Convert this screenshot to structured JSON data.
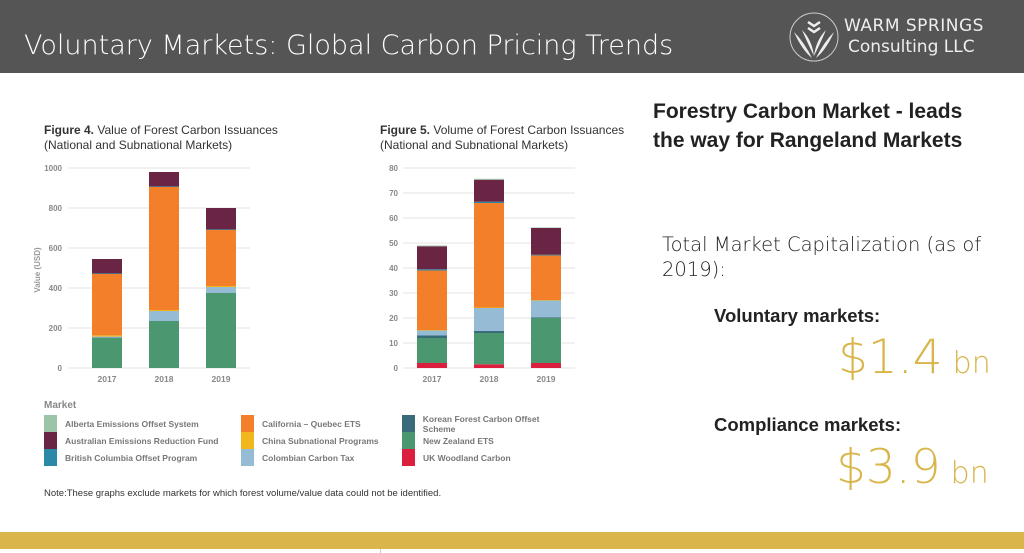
{
  "header": {
    "title": "Voluntary Markets: Global Carbon Pricing Trends",
    "logo_line1": "WARM SPRINGS",
    "logo_line2": "Consulting LLC"
  },
  "right": {
    "heading": "Forestry Carbon Market - leads the way for Rangeland Markets",
    "capitalization": "Total Market Capitalization (as of 2019):",
    "voluntary_label": "Voluntary markets:",
    "voluntary_value": "$1.4",
    "voluntary_unit": "bn",
    "compliance_label": "Compliance markets:",
    "compliance_value": "$3.9",
    "compliance_unit": "bn",
    "accent": "#d9b54a"
  },
  "legend": {
    "title": "Market",
    "items": [
      {
        "name": "Alberta Emissions Offset System",
        "color": "#9cc4a8"
      },
      {
        "name": "Australian Emissions Reduction Fund",
        "color": "#6b2544"
      },
      {
        "name": "British Columbia Offset Program",
        "color": "#2a89a8"
      },
      {
        "name": "California – Quebec ETS",
        "color": "#f47f2a"
      },
      {
        "name": "China Subnational Programs",
        "color": "#f2b71c"
      },
      {
        "name": "Colombian Carbon Tax",
        "color": "#95bcd4"
      },
      {
        "name": "Korean Forest Carbon Offset Scheme",
        "color": "#3a6b7a"
      },
      {
        "name": "New Zealand ETS",
        "color": "#4a9770"
      },
      {
        "name": "UK Woodland Carbon",
        "color": "#dc1f3f"
      }
    ]
  },
  "note": "Note:These graphs exclude markets for which forest volume/value data could not be identified.",
  "chart_data": [
    {
      "type": "bar",
      "stacked": true,
      "title_bold": "Figure 4.",
      "title": "Value of Forest Carbon Issuances",
      "subtitle": "(National and Subnational Markets)",
      "ylabel": "Value (USD)",
      "xlabel": "",
      "ylim": [
        0,
        1000
      ],
      "yticks": [
        0,
        200,
        400,
        600,
        800,
        1000
      ],
      "grid": true,
      "categories": [
        "2017",
        "2018",
        "2019"
      ],
      "series": [
        {
          "name": "UK Woodland Carbon",
          "values": [
            0,
            0,
            0
          ]
        },
        {
          "name": "New Zealand ETS",
          "values": [
            150,
            235,
            375
          ]
        },
        {
          "name": "Korean Forest Carbon Offset Scheme",
          "values": [
            2,
            0,
            0
          ]
        },
        {
          "name": "Colombian Carbon Tax",
          "values": [
            5,
            50,
            30
          ]
        },
        {
          "name": "China Subnational Programs",
          "values": [
            6,
            5,
            5
          ]
        },
        {
          "name": "California – Quebec ETS",
          "values": [
            307,
            615,
            280
          ]
        },
        {
          "name": "British Columbia Offset Program",
          "values": [
            3,
            3,
            3
          ]
        },
        {
          "name": "Australian Emissions Reduction Fund",
          "values": [
            72,
            72,
            107
          ]
        },
        {
          "name": "Alberta Emissions Offset System",
          "values": [
            0,
            0,
            0
          ]
        }
      ]
    },
    {
      "type": "bar",
      "stacked": true,
      "title_bold": "Figure 5.",
      "title": "Volume of Forest Carbon Issuances",
      "subtitle": "(National and Subnational Markets)",
      "ylabel": "",
      "xlabel": "",
      "ylim": [
        0,
        80
      ],
      "yticks": [
        0,
        10,
        20,
        30,
        40,
        50,
        60,
        70,
        80
      ],
      "grid": true,
      "categories": [
        "2017",
        "2018",
        "2019"
      ],
      "series": [
        {
          "name": "UK Woodland Carbon",
          "values": [
            2,
            1.5,
            2
          ]
        },
        {
          "name": "New Zealand ETS",
          "values": [
            10,
            12.5,
            18
          ]
        },
        {
          "name": "Korean Forest Carbon Offset Scheme",
          "values": [
            1,
            0.8,
            0.3
          ]
        },
        {
          "name": "Colombian Carbon Tax",
          "values": [
            2,
            9.2,
            6.7
          ]
        },
        {
          "name": "China Subnational Programs",
          "values": [
            0.2,
            0.2,
            0.2
          ]
        },
        {
          "name": "California – Quebec ETS",
          "values": [
            23.8,
            41.8,
            17.8
          ]
        },
        {
          "name": "British Columbia Offset Program",
          "values": [
            0.5,
            0.5,
            0.3
          ]
        },
        {
          "name": "Australian Emissions Reduction Fund",
          "values": [
            9.2,
            8.8,
            10.7
          ]
        },
        {
          "name": "Alberta Emissions Offset System",
          "values": [
            0.3,
            0.4,
            0.2
          ]
        }
      ]
    }
  ]
}
